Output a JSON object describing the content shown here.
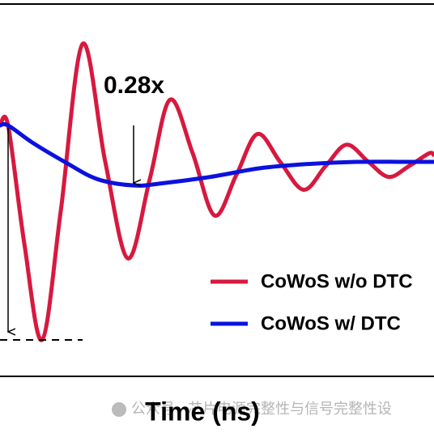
{
  "chart_data": {
    "type": "line",
    "x_label": "Time (ns)",
    "annotation": "0.28x",
    "watermark": "公众号 · 芯片电源完整性与信号完整性设",
    "xlim": [
      0,
      536
    ],
    "ylim": [
      -1.17,
      0.566
    ],
    "legend": "bottom-right",
    "series": [
      {
        "name": "CoWoS w/o DTC",
        "color": "#d7193f",
        "x": [
          0,
          10,
          30,
          52,
          75,
          102,
          130,
          158,
          185,
          210,
          238,
          265,
          292,
          318,
          346,
          375,
          402,
          428,
          455,
          480,
          505,
          530,
          536
        ],
        "values": [
          0,
          0,
          -0.55,
          -1.0,
          -0.4,
          0.38,
          -0.17,
          -0.62,
          -0.25,
          0.12,
          -0.13,
          -0.42,
          -0.23,
          -0.04,
          -0.17,
          -0.3,
          -0.19,
          -0.09,
          -0.17,
          -0.24,
          -0.19,
          -0.13,
          -0.14
        ]
      },
      {
        "name": "CoWoS w/ DTC",
        "color": "#0b12de",
        "x": [
          0,
          10,
          40,
          80,
          120,
          165,
          200,
          260,
          320,
          380,
          440,
          500,
          536
        ],
        "values": [
          0,
          0,
          -0.08,
          -0.17,
          -0.25,
          -0.28,
          -0.27,
          -0.24,
          -0.2,
          -0.18,
          -0.17,
          -0.17,
          -0.17
        ]
      }
    ]
  }
}
